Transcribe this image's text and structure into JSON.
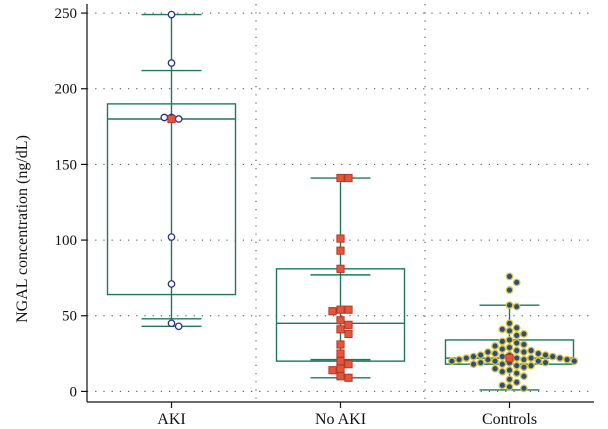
{
  "chart_data": {
    "type": "box",
    "title": "",
    "xlabel": "",
    "ylabel": "NGAL concentration (ng/dL)",
    "ylim": [
      -7,
      256
    ],
    "yticks": [
      0,
      50,
      100,
      150,
      200,
      250
    ],
    "grid": "dotted",
    "categories": [
      "AKI",
      "No AKI",
      "Controls"
    ],
    "groups": [
      {
        "name": "AKI",
        "q1": 64,
        "median": 180,
        "q3": 190,
        "whisker_low": 43,
        "whisker_high": 249,
        "cap_low": 48,
        "cap_high": 212,
        "mean": 180,
        "color": "#1b7a5e",
        "point_fill": "#ffffff",
        "point_edge": "#2b2f8f",
        "marker": "circle",
        "points": [
          249,
          217,
          181,
          180,
          181,
          102,
          71,
          45,
          43
        ]
      },
      {
        "name": "No AKI",
        "q1": 20,
        "median": 45,
        "q3": 81,
        "whisker_low": 9,
        "whisker_high": 141,
        "cap_low": 21,
        "cap_high": 77,
        "mean": null,
        "color": "#1b7a5e",
        "point_fill": "#e8543a",
        "point_edge": "#b23a2a",
        "marker": "square",
        "points": [
          141,
          141,
          101,
          93,
          81,
          54,
          54,
          53,
          47,
          44,
          41,
          38,
          31,
          25,
          20,
          18,
          15,
          14,
          10,
          9
        ]
      },
      {
        "name": "Controls",
        "q1": 18,
        "median": 22,
        "q3": 34,
        "whisker_low": 1,
        "whisker_high": 57,
        "cap_low": 1,
        "cap_high": 57,
        "mean": 22,
        "color": "#1b7a5e",
        "point_fill": "#2a4c8a",
        "point_edge": "#d9c434",
        "marker": "circle",
        "points": [
          76,
          72,
          67,
          57,
          56,
          45,
          42,
          41,
          40,
          38,
          37,
          34,
          33,
          32,
          31,
          30,
          29,
          28,
          27,
          27,
          26,
          26,
          25,
          25,
          24,
          24,
          24,
          23,
          23,
          23,
          22,
          22,
          22,
          22,
          21,
          21,
          21,
          21,
          20,
          20,
          20,
          20,
          19,
          19,
          19,
          18,
          18,
          17,
          17,
          16,
          15,
          14,
          13,
          12,
          10,
          8,
          6,
          4,
          3,
          2
        ]
      }
    ]
  }
}
